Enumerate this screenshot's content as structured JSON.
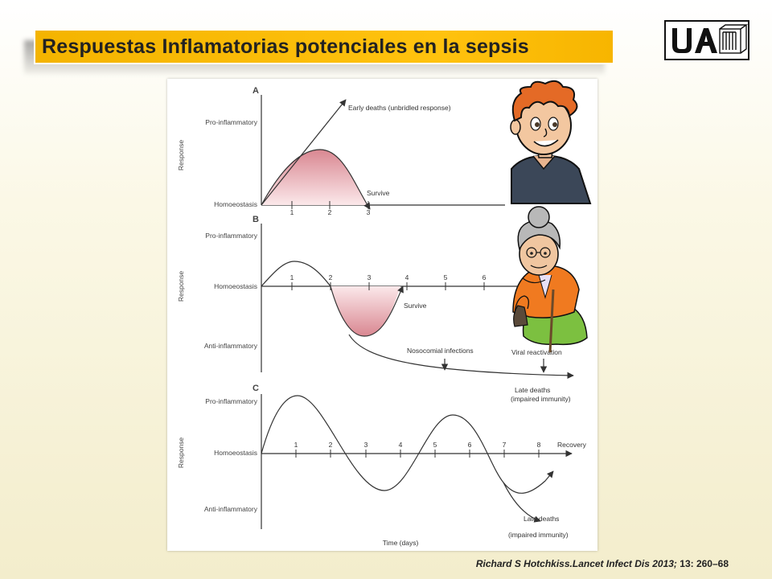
{
  "title": "Respuestas Inflamatorias potenciales en la sepsis",
  "logo_text": "UAM",
  "citation": {
    "authors_journal": "Richard S Hotchkiss.Lancet Infect Dis 2013;",
    "volume_pages": "13: 260–68"
  },
  "colors": {
    "title_bar": "#ffc20e",
    "shaded_response": "#d9878f",
    "line": "#333333"
  },
  "panels": {
    "a": {
      "letter": "A",
      "ylabel": "Response",
      "levels": [
        "Pro-inflammatory",
        "Homoeostasis"
      ],
      "ticks": [
        "1",
        "2",
        "3"
      ],
      "annotations": {
        "early_deaths": "Early deaths (unbridled response)",
        "survive": "Survive"
      }
    },
    "b": {
      "letter": "B",
      "ylabel": "Response",
      "levels": [
        "Pro-inflammatory",
        "Homoeostasis",
        "Anti-inflammatory"
      ],
      "ticks": [
        "1",
        "2",
        "3",
        "4",
        "5",
        "6"
      ],
      "annotations": {
        "survive": "Survive",
        "nosocomial": "Nosocomial infections",
        "viral": "Viral reactivation",
        "late1": "Late deaths",
        "late2": "(impaired immunity)"
      }
    },
    "c": {
      "letter": "C",
      "ylabel": "Response",
      "levels": [
        "Pro-inflammatory",
        "Homoeostasis",
        "Anti-inflammatory"
      ],
      "ticks": [
        "1",
        "2",
        "3",
        "4",
        "5",
        "6",
        "7",
        "8"
      ],
      "annotations": {
        "recovery": "Recovery",
        "late1": "Late deaths",
        "late2": "(impaired immunity)"
      },
      "xlabel": "Time (days)"
    }
  },
  "illustrations": [
    "young-man-cartoon",
    "elderly-woman-cartoon"
  ]
}
